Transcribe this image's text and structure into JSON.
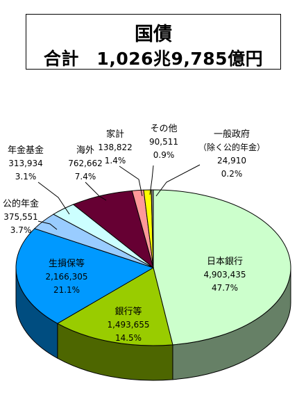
{
  "header": {
    "title": "国債",
    "total": "合計　1,026兆9,785億円"
  },
  "colors": {
    "日本銀行": "#ccffcc",
    "銀行等": "#99cc00",
    "生損保等": "#0099ff",
    "公的年金": "#99ccff",
    "年金基金": "#ccffff",
    "海外": "#660033",
    "家計": "#ff9999",
    "その他": "#ffff00",
    "一般政府（除く公的年金）": "#006600"
  },
  "chart_data": {
    "type": "pie",
    "unit": "億円",
    "total": 10269785,
    "slices": [
      {
        "label": "日本銀行",
        "value": 4903435,
        "value_text": "4,903,435",
        "percent": "47.7%"
      },
      {
        "label": "銀行等",
        "value": 1493655,
        "value_text": "1,493,655",
        "percent": "14.5%"
      },
      {
        "label": "生損保等",
        "value": 2166305,
        "value_text": "2,166,305",
        "percent": "21.1%"
      },
      {
        "label": "公的年金",
        "value": 375551,
        "value_text": "375,551",
        "percent": "3.7%"
      },
      {
        "label": "年金基金",
        "value": 313934,
        "value_text": "313,934",
        "percent": "3.1%"
      },
      {
        "label": "海外",
        "value": 762662,
        "value_text": "762,662",
        "percent": "7.4%"
      },
      {
        "label": "家計",
        "value": 138822,
        "value_text": "138,822",
        "percent": "1.4%"
      },
      {
        "label": "その他",
        "value": 90511,
        "value_text": "90,511",
        "percent": "0.9%"
      },
      {
        "label": "一般政府",
        "label_line2": "（除く公的年金）",
        "value": 24910,
        "value_text": "24,910",
        "percent": "0.2%"
      }
    ]
  }
}
